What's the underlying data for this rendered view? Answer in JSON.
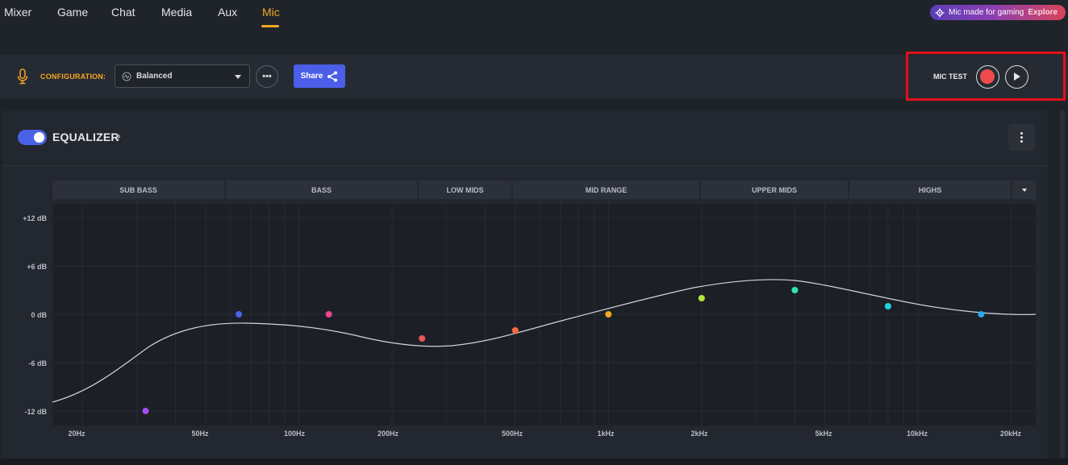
{
  "nav": {
    "tabs": [
      "Mixer",
      "Game",
      "Chat",
      "Media",
      "Aux",
      "Mic"
    ],
    "active_tab": "Mic",
    "promo": {
      "text": "Mic made for gaming",
      "link": "Explore"
    }
  },
  "config": {
    "label": "CONFIGURATION:",
    "preset": "Balanced",
    "share_label": "Share",
    "mic_test_label": "MIC TEST"
  },
  "equalizer": {
    "title": "EQUALIZER",
    "help": "?",
    "enabled": true,
    "bands": [
      "SUB BASS",
      "BASS",
      "LOW MIDS",
      "MID RANGE",
      "UPPER MIDS",
      "HIGHS"
    ],
    "db_labels": [
      "+12 dB",
      "+6 dB",
      "0 dB",
      "-6 dB",
      "-12 dB"
    ],
    "freq_labels": [
      "20Hz",
      "50Hz",
      "100Hz",
      "200Hz",
      "500Hz",
      "1kHz",
      "2kHz",
      "5kHz",
      "10kHz",
      "20kHz"
    ],
    "points": [
      {
        "freq": "32Hz",
        "gain_db": -12,
        "color": "#a04ef0"
      },
      {
        "freq": "64Hz",
        "gain_db": 0,
        "color": "#4a63e8"
      },
      {
        "freq": "125Hz",
        "gain_db": 0,
        "color": "#e9478f"
      },
      {
        "freq": "250Hz",
        "gain_db": -3,
        "color": "#f0525a"
      },
      {
        "freq": "500Hz",
        "gain_db": -2,
        "color": "#f26a43"
      },
      {
        "freq": "1kHz",
        "gain_db": 0,
        "color": "#f5a623"
      },
      {
        "freq": "2kHz",
        "gain_db": 2,
        "color": "#b6e83a"
      },
      {
        "freq": "4kHz",
        "gain_db": 3,
        "color": "#2ee6b0"
      },
      {
        "freq": "8kHz",
        "gain_db": 1,
        "color": "#22d3e0"
      },
      {
        "freq": "16kHz",
        "gain_db": 0,
        "color": "#2aa6f0"
      }
    ]
  }
}
